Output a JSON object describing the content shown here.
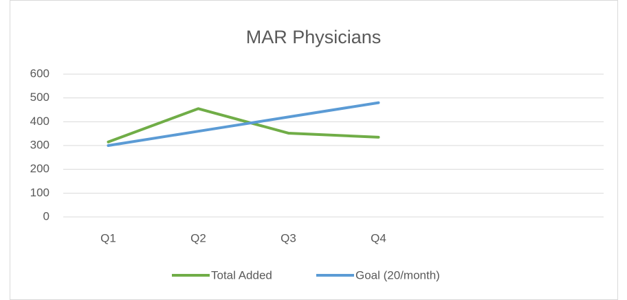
{
  "chart_data": {
    "type": "line",
    "title": "MAR Physicians",
    "categories": [
      "Q1",
      "Q2",
      "Q3",
      "Q4",
      null,
      null
    ],
    "series": [
      {
        "name": "Total Added",
        "color": "#70ad47",
        "values": [
          315,
          455,
          352,
          335,
          null,
          null
        ]
      },
      {
        "name": "Goal (20/month)",
        "color": "#5b9bd5",
        "values": [
          300,
          360,
          420,
          480,
          null,
          null
        ]
      }
    ],
    "ylim": [
      0,
      600
    ],
    "yticks": [
      0,
      100,
      200,
      300,
      400,
      500,
      600
    ],
    "grid": true,
    "legend": "bottom"
  }
}
